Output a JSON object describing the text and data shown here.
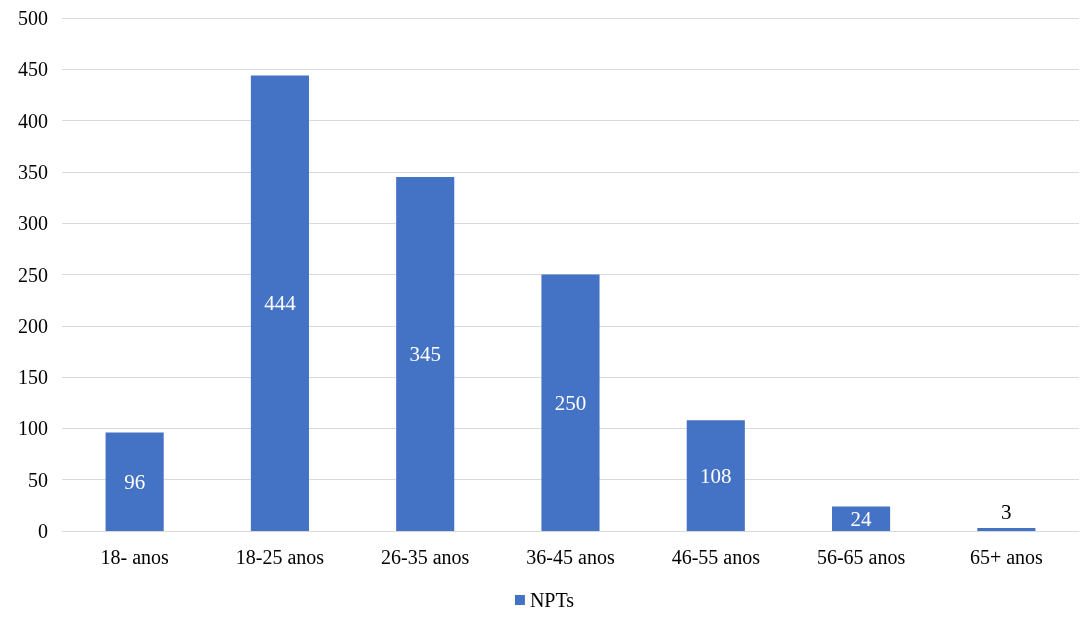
{
  "chart_data": {
    "type": "bar",
    "categories": [
      "18- anos",
      "18-25 anos",
      "26-35 anos",
      "36-45 anos",
      "46-55 anos",
      "56-65 anos",
      "65+ anos"
    ],
    "series": [
      {
        "name": "NPTs",
        "color": "#4472c4",
        "values": [
          96,
          444,
          345,
          250,
          108,
          24,
          3
        ]
      }
    ],
    "ylim": [
      0,
      500
    ],
    "yticks": [
      0,
      50,
      100,
      150,
      200,
      250,
      300,
      350,
      400,
      450,
      500
    ],
    "grid": "y",
    "legend": "bottom",
    "data_labels": true
  }
}
